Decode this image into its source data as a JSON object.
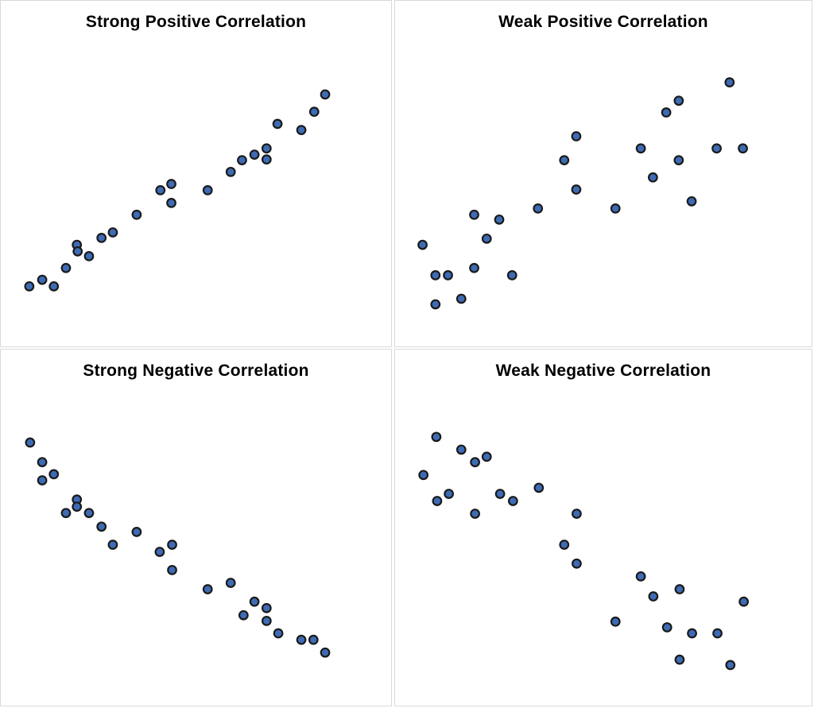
{
  "colors": {
    "point_fill": "#3E6BB4",
    "point_stroke": "#1A1A1A",
    "panel_border": "#D9D9D9",
    "title": "#000000",
    "background": "#FFFFFF"
  },
  "marker": {
    "shape": "circle",
    "fill": "#3E6BB4",
    "stroke": "#1A1A1A"
  },
  "chart_data": [
    {
      "type": "scatter",
      "title": "Strong Positive Correlation",
      "xlabel": "",
      "ylabel": "",
      "axes_visible": false,
      "grid": false,
      "legend": false,
      "x_range": [
        0,
        100
      ],
      "y_range": [
        0,
        100
      ],
      "points": [
        [
          7.3,
          17.4
        ],
        [
          10.6,
          19.3
        ],
        [
          13.6,
          17.4
        ],
        [
          16.7,
          22.7
        ],
        [
          19.5,
          29.4
        ],
        [
          19.7,
          27.5
        ],
        [
          22.6,
          26.1
        ],
        [
          25.8,
          31.4
        ],
        [
          28.7,
          33.0
        ],
        [
          34.8,
          38.1
        ],
        [
          40.9,
          45.2
        ],
        [
          43.7,
          47.0
        ],
        [
          43.7,
          41.5
        ],
        [
          53.0,
          45.2
        ],
        [
          58.9,
          50.5
        ],
        [
          61.8,
          53.9
        ],
        [
          65.0,
          55.5
        ],
        [
          68.1,
          57.3
        ],
        [
          68.1,
          54.1
        ],
        [
          70.9,
          64.4
        ],
        [
          77.0,
          62.6
        ],
        [
          80.3,
          67.9
        ],
        [
          83.1,
          72.9
        ]
      ]
    },
    {
      "type": "scatter",
      "title": "Weak Positive Correlation",
      "xlabel": "",
      "ylabel": "",
      "axes_visible": false,
      "grid": false,
      "legend": false,
      "x_range": [
        0,
        100
      ],
      "y_range": [
        0,
        100
      ],
      "points": [
        [
          6.6,
          29.4
        ],
        [
          9.7,
          20.6
        ],
        [
          12.7,
          20.6
        ],
        [
          9.7,
          12.2
        ],
        [
          15.9,
          13.8
        ],
        [
          19.0,
          22.7
        ],
        [
          19.0,
          38.1
        ],
        [
          22.0,
          31.2
        ],
        [
          25.0,
          36.7
        ],
        [
          28.1,
          20.6
        ],
        [
          34.3,
          39.9
        ],
        [
          40.6,
          53.9
        ],
        [
          43.5,
          60.8
        ],
        [
          43.5,
          45.4
        ],
        [
          52.9,
          39.9
        ],
        [
          59.0,
          57.3
        ],
        [
          61.9,
          48.9
        ],
        [
          65.1,
          67.7
        ],
        [
          68.1,
          71.1
        ],
        [
          68.1,
          53.9
        ],
        [
          71.2,
          42.0
        ],
        [
          77.2,
          57.3
        ],
        [
          80.3,
          76.4
        ],
        [
          83.5,
          57.3
        ]
      ]
    },
    {
      "type": "scatter",
      "title": "Strong Negative Correlation",
      "xlabel": "",
      "ylabel": "",
      "axes_visible": false,
      "grid": false,
      "legend": false,
      "x_range": [
        0,
        100
      ],
      "y_range": [
        0,
        100
      ],
      "points": [
        [
          7.5,
          73.9
        ],
        [
          10.6,
          68.4
        ],
        [
          13.6,
          65.0
        ],
        [
          10.6,
          63.3
        ],
        [
          19.5,
          57.9
        ],
        [
          19.5,
          55.9
        ],
        [
          16.7,
          54.1
        ],
        [
          22.6,
          54.1
        ],
        [
          25.8,
          50.3
        ],
        [
          28.7,
          45.2
        ],
        [
          34.8,
          48.8
        ],
        [
          40.7,
          43.2
        ],
        [
          43.9,
          45.2
        ],
        [
          43.9,
          38.1
        ],
        [
          53.0,
          32.7
        ],
        [
          58.9,
          34.5
        ],
        [
          62.2,
          25.4
        ],
        [
          65.0,
          29.2
        ],
        [
          68.1,
          27.4
        ],
        [
          68.1,
          23.8
        ],
        [
          71.1,
          20.3
        ],
        [
          77.0,
          18.5
        ],
        [
          80.1,
          18.5
        ],
        [
          83.1,
          14.9
        ]
      ]
    },
    {
      "type": "scatter",
      "title": "Weak Negative Correlation",
      "xlabel": "",
      "ylabel": "",
      "axes_visible": false,
      "grid": false,
      "legend": false,
      "x_range": [
        0,
        100
      ],
      "y_range": [
        0,
        100
      ],
      "points": [
        [
          9.9,
          75.5
        ],
        [
          15.9,
          71.9
        ],
        [
          22.0,
          69.9
        ],
        [
          19.2,
          68.4
        ],
        [
          6.8,
          64.8
        ],
        [
          12.9,
          59.5
        ],
        [
          10.1,
          57.5
        ],
        [
          25.2,
          59.5
        ],
        [
          28.3,
          57.5
        ],
        [
          34.5,
          61.2
        ],
        [
          19.2,
          53.9
        ],
        [
          43.6,
          53.9
        ],
        [
          40.6,
          45.2
        ],
        [
          43.6,
          39.9
        ],
        [
          59.0,
          36.3
        ],
        [
          62.0,
          30.7
        ],
        [
          68.3,
          32.7
        ],
        [
          83.7,
          29.2
        ],
        [
          52.9,
          23.6
        ],
        [
          65.3,
          22.0
        ],
        [
          71.3,
          20.3
        ],
        [
          77.4,
          20.3
        ],
        [
          68.3,
          12.9
        ],
        [
          80.5,
          11.4
        ]
      ]
    }
  ]
}
